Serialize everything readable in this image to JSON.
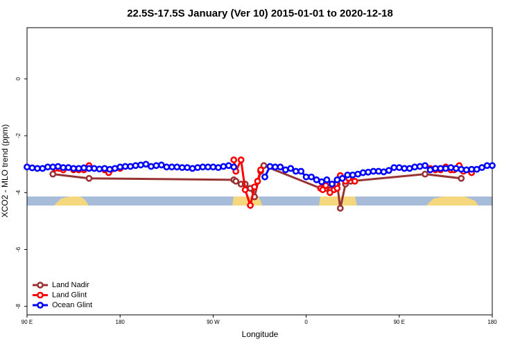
{
  "chart_data": {
    "type": "line",
    "title": "22.5S-17.5S January (Ver 10)   2015-01-01 to 2020-12-18",
    "x_label": "Longitude",
    "y_label": "XCO2 - MLO trend (ppm)",
    "xlim": [
      90,
      540
    ],
    "ylim": [
      -8.3,
      1.8
    ],
    "xticks": [
      {
        "value": 90,
        "label": "90 E"
      },
      180,
      {
        "value": 270,
        "label": "90 W"
      },
      {
        "value": 360,
        "label": "0"
      },
      {
        "value": 450,
        "label": "90 E"
      },
      {
        "value": 540,
        "label": "180"
      }
    ],
    "yticks": [
      -8,
      -6,
      -4,
      -2,
      0
    ],
    "legend": "bottom-left",
    "series": [
      {
        "name": "Land Nadir",
        "color": "#993333",
        "x": [
          115,
          150,
          290,
          292,
          297,
          301,
          306,
          310,
          316,
          319,
          374,
          379,
          387,
          390,
          393,
          398,
          403,
          475,
          510
        ],
        "values": [
          -3.35,
          -3.5,
          -3.55,
          -3.6,
          -3.7,
          -3.7,
          -3.85,
          -4.15,
          -3.25,
          -3.05,
          -3.85,
          -3.85,
          -3.8,
          -3.7,
          -4.55,
          -3.7,
          -3.6,
          -3.35,
          -3.5
        ]
      },
      {
        "name": "Land Glint",
        "color": "#ff0000",
        "x": [
          117,
          121,
          125,
          130,
          135,
          140,
          145,
          150,
          160,
          165,
          169,
          180,
          250,
          290,
          292,
          297,
          301,
          306,
          310,
          313,
          316,
          330,
          374,
          376,
          379,
          383,
          387,
          390,
          393,
          398,
          401,
          407,
          450,
          480,
          485,
          490,
          495,
          500,
          503,
          508,
          512,
          520
        ],
        "values": [
          -3.15,
          -3.15,
          -3.2,
          -3.12,
          -3.2,
          -3.2,
          -3.2,
          -3.05,
          null,
          -3.2,
          -3.3,
          -3.15,
          null,
          -2.85,
          -3.25,
          -2.85,
          -3.9,
          -4.45,
          -3.8,
          -3.6,
          -3.2,
          null,
          -3.85,
          -3.9,
          -3.75,
          -4.0,
          -3.9,
          -3.85,
          -3.4,
          -3.6,
          -3.5,
          -3.6,
          null,
          -3.15,
          -3.2,
          -3.2,
          -3.1,
          -3.2,
          -3.2,
          -3.05,
          -3.25,
          -3.3
        ]
      },
      {
        "name": "Ocean Glint",
        "color": "#0000ff",
        "x": [
          90,
          95,
          100,
          105,
          110,
          115,
          120,
          125,
          130,
          135,
          140,
          145,
          150,
          155,
          160,
          165,
          170,
          175,
          180,
          185,
          190,
          195,
          200,
          205,
          210,
          215,
          220,
          225,
          230,
          235,
          240,
          245,
          250,
          255,
          260,
          265,
          270,
          275,
          280,
          285,
          290,
          305,
          320,
          325,
          330,
          335,
          340,
          345,
          350,
          355,
          360,
          365,
          370,
          375,
          380,
          385,
          390,
          395,
          400,
          405,
          410,
          415,
          420,
          425,
          430,
          435,
          440,
          445,
          450,
          455,
          460,
          465,
          470,
          475,
          480,
          485,
          490,
          495,
          500,
          505,
          510,
          515,
          520,
          525,
          530,
          535,
          540
        ],
        "values": [
          -3.1,
          -3.13,
          -3.15,
          -3.15,
          -3.1,
          -3.1,
          -3.08,
          -3.12,
          -3.12,
          -3.15,
          -3.15,
          -3.13,
          -3.15,
          -3.15,
          -3.17,
          -3.15,
          -3.18,
          -3.15,
          -3.1,
          -3.08,
          -3.08,
          -3.05,
          -3.03,
          -3.0,
          -3.08,
          -3.05,
          -3.03,
          -3.1,
          -3.1,
          -3.1,
          -3.12,
          -3.12,
          -3.15,
          -3.12,
          -3.1,
          -3.1,
          -3.1,
          -3.12,
          -3.08,
          -3.05,
          -3.1,
          null,
          -3.45,
          -3.08,
          -3.1,
          -3.1,
          -3.2,
          -3.15,
          -3.25,
          -3.25,
          -3.45,
          -3.45,
          -3.55,
          -3.62,
          -3.55,
          -3.7,
          -3.55,
          -3.5,
          -3.38,
          -3.38,
          -3.35,
          -3.3,
          -3.28,
          -3.25,
          -3.25,
          -3.27,
          -3.22,
          -3.12,
          -3.12,
          -3.15,
          -3.15,
          -3.1,
          -3.08,
          -3.05,
          -3.2,
          -3.15,
          -3.15,
          -3.15,
          -3.12,
          -3.15,
          -3.18,
          -3.2,
          -3.18,
          -3.18,
          -3.12,
          -3.05,
          -3.05
        ]
      }
    ]
  }
}
